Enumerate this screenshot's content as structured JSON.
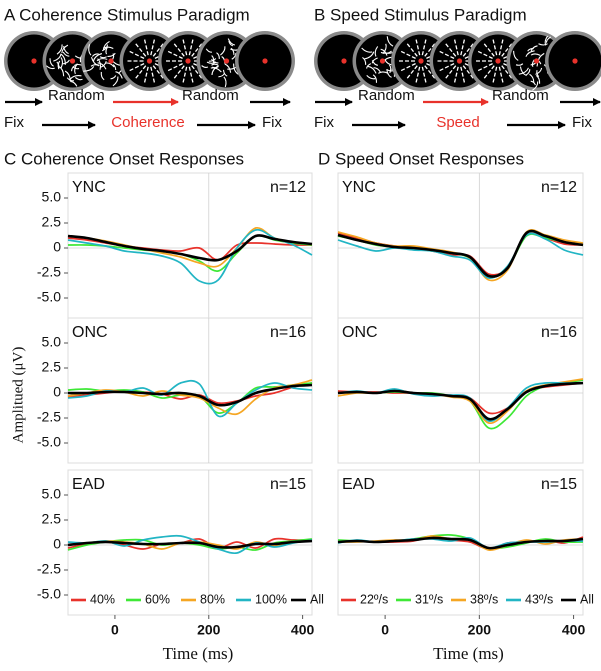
{
  "paradigms": [
    {
      "title": "A Coherence Stimulus Paradigm",
      "labels": [
        "Random",
        "Random",
        "Fix",
        "Coherence",
        "Fix"
      ]
    },
    {
      "title": "B Speed Stimulus Paradigm",
      "labels": [
        "Random",
        "Random",
        "Fix",
        "Speed",
        "Fix"
      ]
    }
  ],
  "chart_data": [
    {
      "type": "line",
      "title": "C Coherence Onset Responses",
      "xlabel": "Time (ms)",
      "ylabel": "Amplitued (μV)",
      "x": [
        -100,
        -60,
        -20,
        20,
        60,
        100,
        140,
        180,
        220,
        260,
        300,
        340,
        380,
        420
      ],
      "xlim": [
        -100,
        420
      ],
      "xticks": [
        0,
        200,
        400
      ],
      "ylim": [
        -7,
        7.5
      ],
      "yticks": [
        {
          "value": 5,
          "label": "5.0"
        },
        2.5,
        0,
        -2.5,
        {
          "value": -5,
          "label": "-5.0"
        }
      ],
      "reference_lines": {
        "x": 200,
        "y": 0
      },
      "series": [
        {
          "name": "40%",
          "color": "#e8322b"
        },
        {
          "name": "60%",
          "color": "#3ee836"
        },
        {
          "name": "80%",
          "color": "#f5a623"
        },
        {
          "name": "100%",
          "color": "#22b5c4"
        },
        {
          "name": "All",
          "color": "#000000"
        }
      ],
      "panels": [
        {
          "group": "YNC",
          "n": "n=12",
          "values": [
            [
              1.0,
              0.8,
              0.5,
              0.2,
              0,
              -0.2,
              -0.3,
              0,
              -1.2,
              0.3,
              0.5,
              0.4,
              0.3,
              0.3
            ],
            [
              0.3,
              0.3,
              0.2,
              0,
              -0.2,
              -0.3,
              -0.6,
              -1.3,
              -2.3,
              -0.5,
              1.2,
              0.8,
              0.5,
              0.3
            ],
            [
              1.2,
              1.0,
              0.7,
              0.3,
              -0.1,
              -0.5,
              -0.9,
              -1.5,
              -1.8,
              0.0,
              2.0,
              1.0,
              0.6,
              0.4
            ],
            [
              0.8,
              0.5,
              0.2,
              -0.3,
              -0.5,
              -0.8,
              -1.5,
              -3.3,
              -3.2,
              0.0,
              1.8,
              1.0,
              0.3,
              -0.7
            ],
            [
              1.2,
              1.0,
              0.6,
              0.2,
              -0.1,
              -0.3,
              -0.6,
              -1.0,
              -1.2,
              -0.3,
              1.2,
              0.9,
              0.6,
              0.4
            ]
          ]
        },
        {
          "group": "ONC",
          "n": "n=16",
          "values": [
            [
              -0.4,
              -0.2,
              0,
              0.2,
              0.1,
              -0.1,
              -0.6,
              -0.2,
              -1.0,
              -0.8,
              -0.3,
              0,
              0.6,
              1.0
            ],
            [
              0.3,
              0.4,
              0.2,
              0.3,
              0.1,
              -0.5,
              -0.2,
              -0.3,
              -2.0,
              -1.0,
              0.5,
              0.6,
              0.8,
              1.0
            ],
            [
              -0.3,
              0,
              0.3,
              0.1,
              -0.3,
              0.2,
              -0.2,
              -0.5,
              -1.5,
              -2.1,
              -0.6,
              0.5,
              0.8,
              1.3
            ],
            [
              -0.5,
              -0.3,
              0.2,
              0.1,
              0.5,
              -0.2,
              1.0,
              0.9,
              -2.3,
              -1.0,
              0.3,
              1.0,
              0.5,
              0.3
            ],
            [
              0,
              0,
              0.1,
              0.1,
              0,
              -0.1,
              0,
              -0.3,
              -1.2,
              -0.9,
              0,
              0.4,
              0.7,
              0.8
            ]
          ]
        },
        {
          "group": "EAD",
          "n": "n=15",
          "values": [
            [
              -0.3,
              0.1,
              0.3,
              0,
              -0.4,
              0.1,
              0.2,
              0.6,
              -0.3,
              0.3,
              -0.3,
              0.6,
              0.5,
              0.5
            ],
            [
              -0.5,
              0,
              0.3,
              0.5,
              0.5,
              0,
              0.2,
              0,
              -0.4,
              -0.2,
              -0.5,
              0.2,
              0.4,
              0.6
            ],
            [
              0,
              0.2,
              0.4,
              0.3,
              0.1,
              -0.4,
              0.2,
              0.3,
              0,
              -0.4,
              0.3,
              -0.1,
              0.3,
              0.4
            ],
            [
              0.3,
              0.2,
              0.4,
              -0.1,
              0.5,
              0.8,
              0.9,
              0.3,
              -0.4,
              -0.8,
              0.2,
              -0.2,
              0.2,
              0.5
            ],
            [
              0,
              0.2,
              0.3,
              0.2,
              0.1,
              0.1,
              0.2,
              0.2,
              -0.2,
              -0.2,
              0.1,
              0.1,
              0.3,
              0.4
            ]
          ]
        }
      ]
    },
    {
      "type": "line",
      "title": "D Speed Onset Responses",
      "xlabel": "Time (ms)",
      "x": [
        -100,
        -60,
        -20,
        20,
        60,
        100,
        140,
        180,
        220,
        260,
        300,
        340,
        380,
        420
      ],
      "xlim": [
        -100,
        420
      ],
      "xticks": [
        0,
        200,
        400
      ],
      "ylim": [
        -7,
        7.5
      ],
      "reference_lines": {
        "x": 200,
        "y": 0
      },
      "series": [
        {
          "name": "22º/s",
          "color": "#e8322b"
        },
        {
          "name": "31º/s",
          "color": "#3ee836"
        },
        {
          "name": "38º/s",
          "color": "#f5a623"
        },
        {
          "name": "43º/s",
          "color": "#22b5c4"
        },
        {
          "name": "All",
          "color": "#000000"
        }
      ],
      "panels": [
        {
          "group": "YNC",
          "n": "n=12",
          "values": [
            [
              1.5,
              1.0,
              0.5,
              0.2,
              0,
              -0.3,
              -0.7,
              -0.8,
              -2.6,
              -2.0,
              1.5,
              1.0,
              0.4,
              0.3
            ],
            [
              1.2,
              0.8,
              0.3,
              0.1,
              0,
              -0.3,
              -0.5,
              -1.0,
              -2.8,
              -2.0,
              1.2,
              1.0,
              0.6,
              0.3
            ],
            [
              1.6,
              1.1,
              0.5,
              0.2,
              0.2,
              -0.1,
              -0.4,
              -1.0,
              -3.2,
              -2.2,
              1.6,
              1.3,
              0.8,
              0.5
            ],
            [
              0.8,
              0.2,
              -0.3,
              0,
              -0.2,
              -0.3,
              -0.8,
              -1.2,
              -3.0,
              -1.8,
              1.3,
              0.9,
              -0.2,
              -0.7
            ],
            [
              1.3,
              0.8,
              0.4,
              0.1,
              0,
              -0.2,
              -0.5,
              -0.9,
              -2.8,
              -2.0,
              1.5,
              1.2,
              0.6,
              0.3
            ]
          ]
        },
        {
          "group": "ONC",
          "n": "n=16",
          "values": [
            [
              0.2,
              0.1,
              0.1,
              0,
              0,
              -0.1,
              -0.3,
              -0.5,
              -2.0,
              -1.5,
              0.2,
              0.6,
              0.8,
              1.0
            ],
            [
              0,
              0.1,
              0,
              0.1,
              0,
              0,
              -0.3,
              -0.8,
              -3.5,
              -2.5,
              -0.3,
              0.7,
              1.0,
              1.3
            ],
            [
              -0.3,
              0,
              0,
              0.3,
              0,
              -0.1,
              -0.4,
              -0.8,
              -3.0,
              -1.8,
              0.2,
              0.8,
              1.1,
              1.4
            ],
            [
              0,
              0.2,
              0,
              0.4,
              -0.1,
              -0.3,
              -0.2,
              -0.5,
              -2.8,
              -1.5,
              0.5,
              1.0,
              1.0,
              1.0
            ],
            [
              0,
              0.1,
              0,
              0.2,
              0,
              -0.1,
              -0.3,
              -0.6,
              -2.6,
              -1.6,
              0.1,
              0.7,
              0.9,
              1.0
            ]
          ]
        },
        {
          "group": "EAD",
          "n": "n=15",
          "values": [
            [
              0.3,
              0.4,
              0.3,
              0.3,
              0.4,
              0.8,
              0.5,
              0.3,
              -0.4,
              0.2,
              0.3,
              0.5,
              0.2,
              0.8
            ],
            [
              0.5,
              0.4,
              0.3,
              0.4,
              0.6,
              0.9,
              1.0,
              0.6,
              -0.3,
              -0.2,
              0.2,
              0.6,
              0.3,
              0.3
            ],
            [
              0.3,
              0.3,
              0.4,
              0.5,
              0.5,
              0.9,
              0.6,
              0.5,
              -0.5,
              0,
              0.5,
              0.1,
              0.5,
              0.6
            ],
            [
              0.2,
              0.5,
              0.3,
              0.4,
              0.6,
              0.6,
              0.4,
              0.7,
              -0.3,
              0.2,
              0.3,
              0.3,
              0.4,
              0.4
            ],
            [
              0.3,
              0.4,
              0.3,
              0.4,
              0.5,
              0.7,
              0.6,
              0.5,
              -0.3,
              0,
              0.3,
              0.4,
              0.4,
              0.6
            ]
          ]
        }
      ]
    }
  ]
}
